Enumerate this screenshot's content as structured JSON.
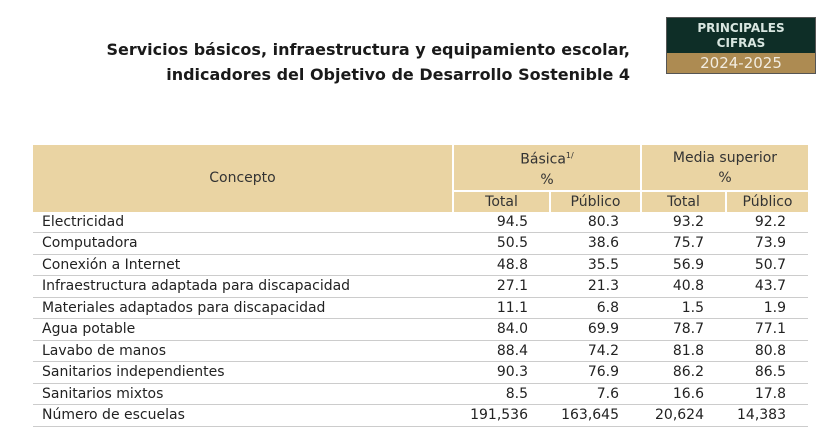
{
  "title": {
    "line1": "Servicios básicos, infraestructura y equipamiento escolar,",
    "line2": "indicadores del Objetivo de Desarrollo Sostenible 4"
  },
  "badge": {
    "line1": "PRINCIPALES",
    "line2": "CIFRAS",
    "year": "2024-2025"
  },
  "table": {
    "concept_header": "Concepto",
    "groups": [
      {
        "label": "Básica",
        "note": "1/",
        "unit": "%"
      },
      {
        "label": "Media superior",
        "unit": "%"
      }
    ],
    "subheaders": [
      "Total",
      "Público",
      "Total",
      "Público"
    ],
    "rows": [
      {
        "label": "Electricidad",
        "values": [
          "94.5",
          "80.3",
          "93.2",
          "92.2"
        ]
      },
      {
        "label": "Computadora",
        "values": [
          "50.5",
          "38.6",
          "75.7",
          "73.9"
        ]
      },
      {
        "label": "Conexión a Internet",
        "values": [
          "48.8",
          "35.5",
          "56.9",
          "50.7"
        ]
      },
      {
        "label": "Infraestructura adaptada para discapacidad",
        "values": [
          "27.1",
          "21.3",
          "40.8",
          "43.7"
        ]
      },
      {
        "label": "Materiales adaptados para discapacidad",
        "values": [
          "11.1",
          "6.8",
          "1.5",
          "1.9"
        ]
      },
      {
        "label": "Agua potable",
        "values": [
          "84.0",
          "69.9",
          "78.7",
          "77.1"
        ]
      },
      {
        "label": "Lavabo de manos",
        "values": [
          "88.4",
          "74.2",
          "81.8",
          "80.8"
        ]
      },
      {
        "label": "Sanitarios independientes",
        "values": [
          "90.3",
          "76.9",
          "86.2",
          "86.5"
        ]
      },
      {
        "label": "Sanitarios mixtos",
        "values": [
          "8.5",
          "7.6",
          "16.6",
          "17.8"
        ]
      },
      {
        "label": "Número de escuelas",
        "values": [
          "191,536",
          "163,645",
          "20,624",
          "14,383"
        ]
      }
    ]
  }
}
